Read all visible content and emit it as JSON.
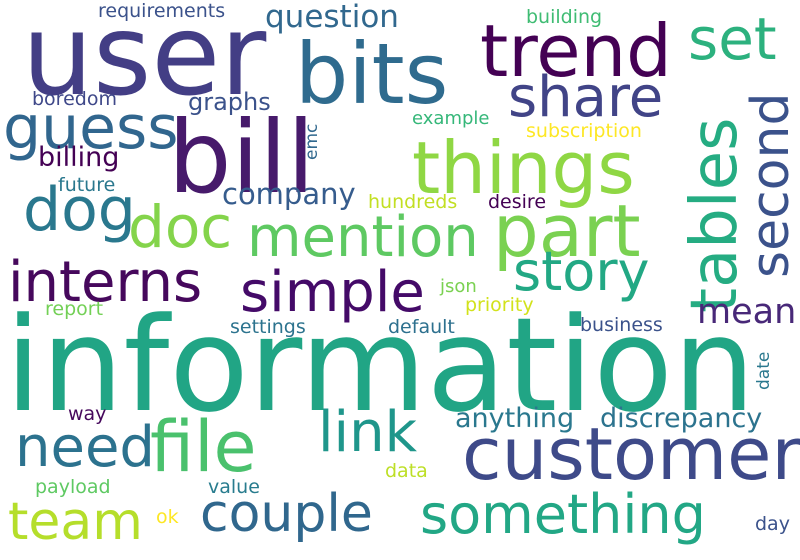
{
  "words": [
    {
      "text": "information",
      "color": "#21a585"
    },
    {
      "text": "user",
      "color": "#433e85"
    },
    {
      "text": "bill",
      "color": "#471a6b"
    },
    {
      "text": "bits",
      "color": "#2f6b8e"
    },
    {
      "text": "trend",
      "color": "#440154"
    },
    {
      "text": "things",
      "color": "#8fd744"
    },
    {
      "text": "customer",
      "color": "#3e4a89"
    },
    {
      "text": "part",
      "color": "#7ad151"
    },
    {
      "text": "tables",
      "color": "#25ac82"
    },
    {
      "text": "second",
      "color": "#3b528b"
    },
    {
      "text": "set",
      "color": "#2cb17e"
    },
    {
      "text": "share",
      "color": "#414487"
    },
    {
      "text": "guess",
      "color": "#31668e"
    },
    {
      "text": "mention",
      "color": "#5ec962"
    },
    {
      "text": "doc",
      "color": "#84d44b"
    },
    {
      "text": "dog",
      "color": "#2a788e"
    },
    {
      "text": "story",
      "color": "#22a884"
    },
    {
      "text": "interns",
      "color": "#46085c"
    },
    {
      "text": "simple",
      "color": "#440a68"
    },
    {
      "text": "file",
      "color": "#4ac16d"
    },
    {
      "text": "need",
      "color": "#2c728e"
    },
    {
      "text": "link",
      "color": "#1f968b"
    },
    {
      "text": "couple",
      "color": "#30678d"
    },
    {
      "text": "something",
      "color": "#22a785"
    },
    {
      "text": "team",
      "color": "#b5de2b"
    },
    {
      "text": "question",
      "color": "#31688e"
    },
    {
      "text": "company",
      "color": "#365c8d"
    },
    {
      "text": "mean",
      "color": "#482878"
    },
    {
      "text": "anything",
      "color": "#2a788e"
    },
    {
      "text": "discrepancy",
      "color": "#2c738e"
    },
    {
      "text": "billing",
      "color": "#440154"
    },
    {
      "text": "graphs",
      "color": "#3b528b"
    },
    {
      "text": "requirements",
      "color": "#3b528b"
    },
    {
      "text": "building",
      "color": "#3fbc73"
    },
    {
      "text": "boredom",
      "color": "#3f4889"
    },
    {
      "text": "example",
      "color": "#35b779"
    },
    {
      "text": "subscription",
      "color": "#fde725"
    },
    {
      "text": "emc",
      "color": "#31688e"
    },
    {
      "text": "future",
      "color": "#2a788e"
    },
    {
      "text": "hundreds",
      "color": "#c2df23"
    },
    {
      "text": "desire",
      "color": "#440154"
    },
    {
      "text": "json",
      "color": "#7ad151"
    },
    {
      "text": "priority",
      "color": "#d2e21b"
    },
    {
      "text": "report",
      "color": "#73d056"
    },
    {
      "text": "settings",
      "color": "#2c738e"
    },
    {
      "text": "default",
      "color": "#2d708e"
    },
    {
      "text": "business",
      "color": "#3b528b"
    },
    {
      "text": "date",
      "color": "#2a788e"
    },
    {
      "text": "way",
      "color": "#46085c"
    },
    {
      "text": "data",
      "color": "#bddf26"
    },
    {
      "text": "payload",
      "color": "#5ec962"
    },
    {
      "text": "value",
      "color": "#287c8e"
    },
    {
      "text": "ok",
      "color": "#fde725"
    },
    {
      "text": "day",
      "color": "#3b528b"
    }
  ]
}
